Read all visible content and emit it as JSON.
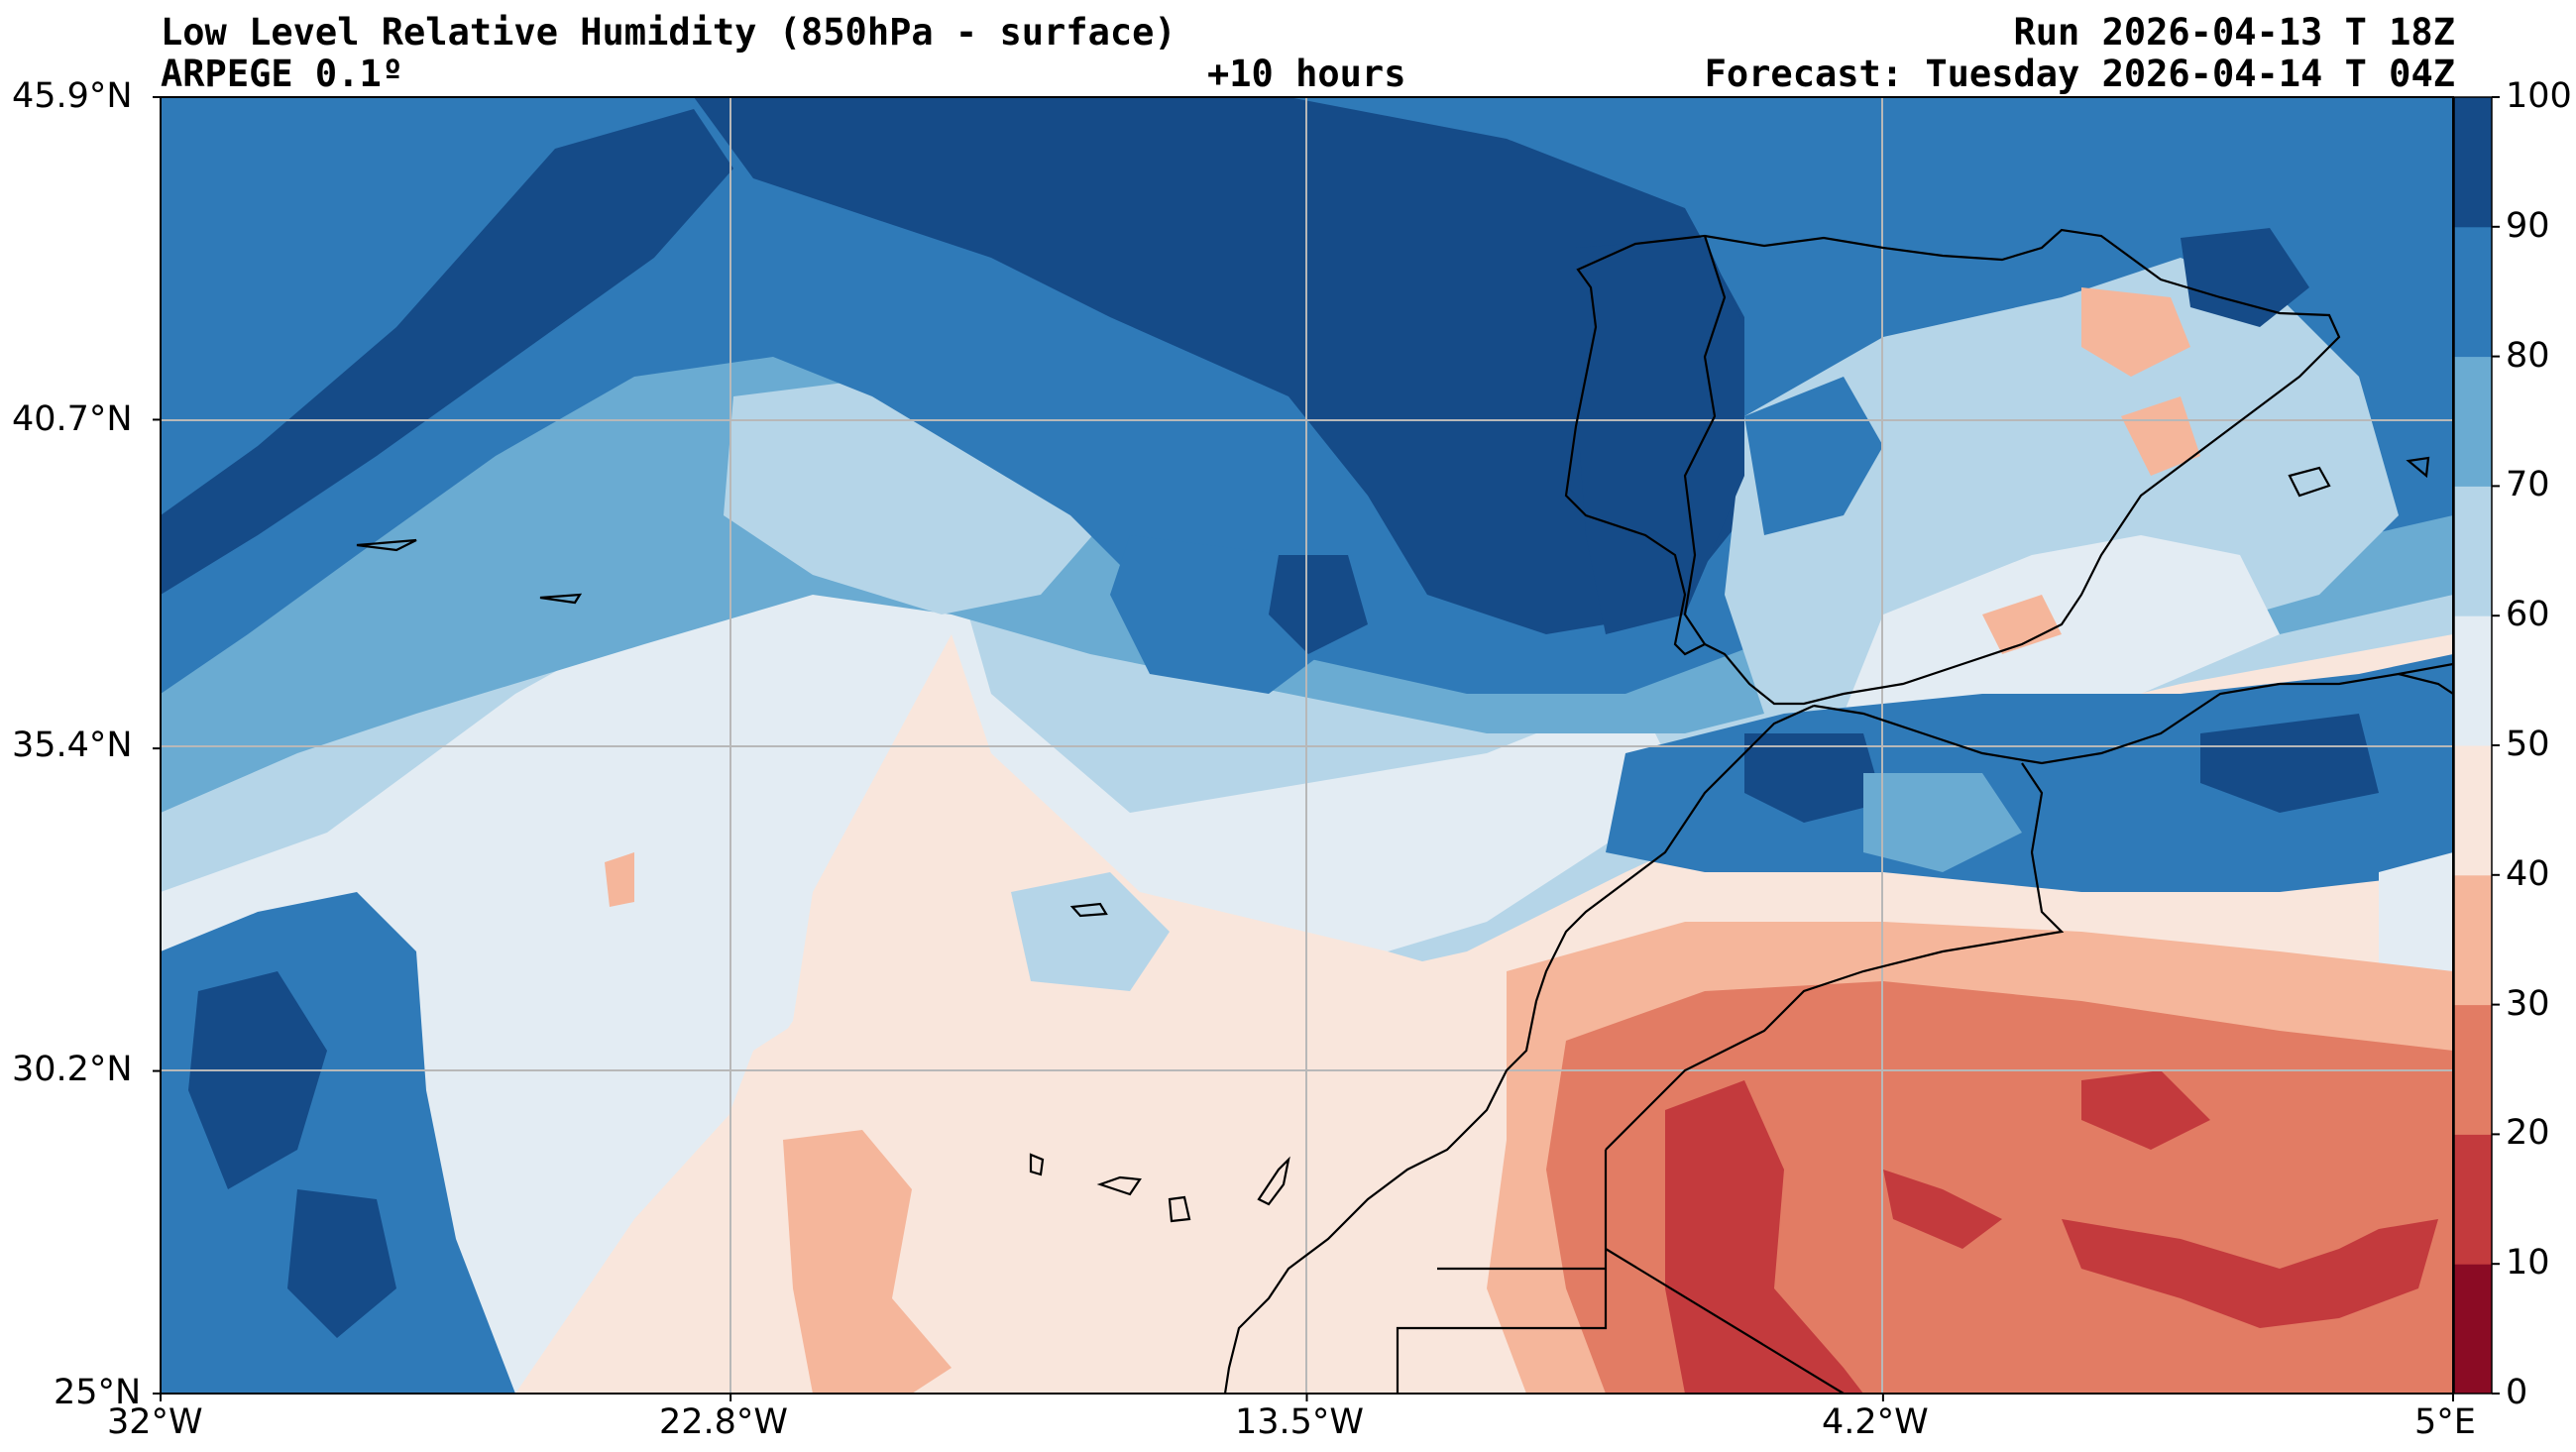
{
  "header": {
    "title": "Low Level Relative Humidity (850hPa - surface)",
    "model": "ARPEGE 0.1º",
    "lead_time": "+10 hours",
    "run": "Run 2026-04-13 T 18Z",
    "forecast": "Forecast: Tuesday 2026-04-14 T 04Z"
  },
  "map": {
    "extent": {
      "lon_min": -32,
      "lon_max": 5,
      "lat_min": 25,
      "lat_max": 45.9
    },
    "lat_ticks": [
      {
        "value": 45.9,
        "label": "45.9°N"
      },
      {
        "value": 40.7,
        "label": "40.7°N"
      },
      {
        "value": 35.4,
        "label": "35.4°N"
      },
      {
        "value": 30.2,
        "label": "30.2°N"
      },
      {
        "value": 25.0,
        "label": "25°N"
      }
    ],
    "lon_ticks": [
      {
        "value": -32.0,
        "label": "32°W"
      },
      {
        "value": -22.8,
        "label": "22.8°W"
      },
      {
        "value": -13.5,
        "label": "13.5°W"
      },
      {
        "value": -4.2,
        "label": "4.2°W"
      },
      {
        "value": 5.0,
        "label": "5°E"
      }
    ],
    "grid": true,
    "colormap": "RdBu"
  },
  "colorbar": {
    "levels": [
      {
        "label": "0",
        "color": "#8b0b24"
      },
      {
        "label": "10",
        "color": "#c33a3d"
      },
      {
        "label": "20",
        "color": "#e27c64"
      },
      {
        "label": "30",
        "color": "#f5b69b"
      },
      {
        "label": "40",
        "color": "#f9e6dc"
      },
      {
        "label": "50",
        "color": "#e3ecf3"
      },
      {
        "label": "60",
        "color": "#b5d5e8"
      },
      {
        "label": "70",
        "color": "#6aabd2"
      },
      {
        "label": "80",
        "color": "#2f7ab8"
      },
      {
        "label": "90",
        "color": "#154b88"
      },
      {
        "label": "100",
        "color": ""
      }
    ]
  }
}
